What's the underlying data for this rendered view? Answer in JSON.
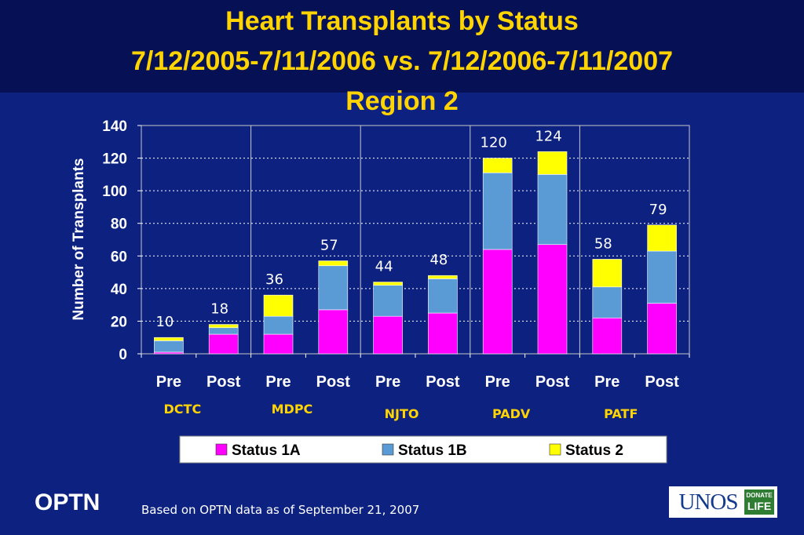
{
  "title": {
    "line1": "Heart Transplants by Status",
    "line2": "7/12/2005-7/11/2006 vs. 7/12/2006-7/11/2007",
    "line3": "Region 2"
  },
  "footer": {
    "brand": "OPTN",
    "note": "Based on OPTN data as of  September 21, 2007",
    "logo_text": "UNOS",
    "logo_badge_top": "DONATE",
    "logo_badge_bottom": "LIFE"
  },
  "chart_data": {
    "type": "bar",
    "stacked": true,
    "ylabel": "Number of Transplants",
    "ylim": [
      0,
      140
    ],
    "yticks": [
      0,
      20,
      40,
      60,
      80,
      100,
      120,
      140
    ],
    "grid": true,
    "legend_position": "bottom",
    "categories": [
      "Pre",
      "Post",
      "Pre",
      "Post",
      "Pre",
      "Post",
      "Pre",
      "Post",
      "Pre",
      "Post"
    ],
    "groups": [
      {
        "name": "DCTC",
        "color": "#ffd400"
      },
      {
        "name": "MDPC",
        "color": "#ffd400"
      },
      {
        "name": "NJTO",
        "color": "#ffd400"
      },
      {
        "name": "PADV",
        "color": "#ffd400"
      },
      {
        "name": "PATF",
        "color": "#ffd400"
      }
    ],
    "series": [
      {
        "name": "Status 1A",
        "color": "#ff00ff",
        "values": [
          1,
          12,
          12,
          27,
          23,
          25,
          64,
          67,
          22,
          31
        ]
      },
      {
        "name": "Status 1B",
        "color": "#5b9bd5",
        "values": [
          7,
          4,
          11,
          27,
          19,
          21,
          47,
          43,
          19,
          32
        ]
      },
      {
        "name": "Status 2",
        "color": "#ffff00",
        "values": [
          2,
          2,
          13,
          3,
          2,
          2,
          9,
          14,
          17,
          16
        ]
      }
    ],
    "totals": [
      10,
      18,
      36,
      57,
      44,
      48,
      120,
      124,
      58,
      79
    ]
  }
}
